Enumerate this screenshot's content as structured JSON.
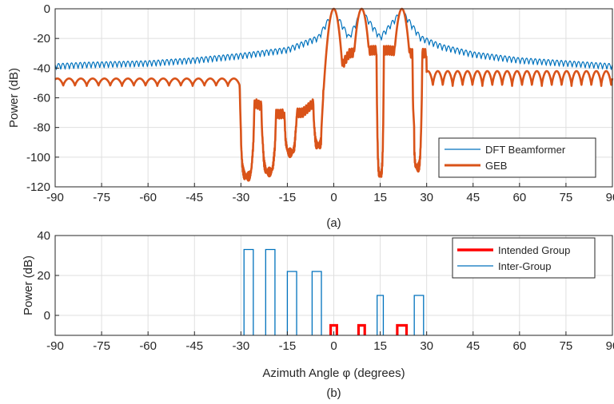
{
  "chart_data": [
    {
      "type": "line",
      "caption": "(a)",
      "xlabel": "",
      "ylabel": "Power (dB)",
      "xlim": [
        -90,
        90
      ],
      "ylim": [
        -120,
        0
      ],
      "xticks": [
        -90,
        -75,
        -60,
        -45,
        -30,
        -15,
        0,
        15,
        30,
        45,
        60,
        75,
        90
      ],
      "yticks": [
        0,
        -20,
        -40,
        -60,
        -80,
        -100,
        -120
      ],
      "grid": true,
      "legend_placement": "bottom-right",
      "series": [
        {
          "name": "DFT Beamformer",
          "color": "#0072BD",
          "envelope": [
            [
              -90,
              -37
            ],
            [
              -80,
              -36
            ],
            [
              -60,
              -35
            ],
            [
              -45,
              -33
            ],
            [
              -30,
              -30
            ],
            [
              -15,
              -26
            ],
            [
              -5,
              -18
            ],
            [
              0,
              0
            ],
            [
              5,
              -18
            ],
            [
              9,
              0
            ],
            [
              15,
              -18
            ],
            [
              22,
              0
            ],
            [
              28,
              -18
            ],
            [
              35,
              -24
            ],
            [
              45,
              -29
            ],
            [
              60,
              -33
            ],
            [
              75,
              -35
            ],
            [
              90,
              -37
            ]
          ],
          "ripple_floor_offset_db": -4,
          "ripple_period_deg": 1.4,
          "main_lobes": [
            {
              "center": 0,
              "peak": 0,
              "width": 1.6
            },
            {
              "center": 9,
              "peak": 0,
              "width": 1.6
            },
            {
              "center": 22,
              "peak": 0,
              "width": 1.6
            }
          ]
        },
        {
          "name": "GEB",
          "color": "#D95319",
          "regions": [
            {
              "x": [
                -90,
                -30
              ],
              "top": -47,
              "bottom": -52,
              "lobe_period_deg": 3.8
            },
            {
              "x": [
                30,
                90
              ],
              "top": -42,
              "bottom": -52,
              "lobe_period_deg": 3.2
            }
          ],
          "nulls": [
            {
              "center": -28,
              "depth": -113,
              "width": 2.4
            },
            {
              "center": -21,
              "depth": -110,
              "width": 2.4
            },
            {
              "center": -14,
              "depth": -97,
              "width": 2.0
            },
            {
              "center": -5,
              "depth": -92,
              "width": 1.6
            },
            {
              "center": 15,
              "depth": -112,
              "width": 1.2
            },
            {
              "center": 27,
              "depth": -107,
              "width": 1.6
            }
          ],
          "sidelobe_peaks": [
            [
              -25,
              -64
            ],
            [
              -18,
              -71
            ],
            [
              -10,
              -70
            ],
            [
              -2,
              -55
            ],
            [
              5,
              -30
            ],
            [
              12,
              -28
            ],
            [
              18,
              -28
            ],
            [
              25,
              -30
            ]
          ],
          "main_lobes": [
            {
              "center": 0,
              "peak": 0,
              "width": 1.6
            },
            {
              "center": 9,
              "peak": 0,
              "width": 1.6
            },
            {
              "center": 22,
              "peak": 0,
              "width": 1.6
            }
          ]
        }
      ]
    },
    {
      "type": "bar",
      "caption": "(b)",
      "xlabel": "Azimuth Angle φ (degrees)",
      "ylabel": "Power (dB)",
      "xlim": [
        -90,
        90
      ],
      "ylim": [
        -10,
        40
      ],
      "xticks": [
        -90,
        -75,
        -60,
        -45,
        -30,
        -15,
        0,
        15,
        30,
        45,
        60,
        75,
        90
      ],
      "yticks": [
        40,
        20,
        0
      ],
      "grid": true,
      "legend_placement": "top-right",
      "series": [
        {
          "name": "Intended Group",
          "color": "#FF0000",
          "bars": [
            {
              "x0": -1,
              "x1": 1,
              "value": -5
            },
            {
              "x0": 8,
              "x1": 10,
              "value": -5
            },
            {
              "x0": 20.5,
              "x1": 23.5,
              "value": -5
            }
          ]
        },
        {
          "name": "Inter-Group",
          "color": "#0072BD",
          "bars": [
            {
              "x0": -29,
              "x1": -26,
              "value": 33
            },
            {
              "x0": -22,
              "x1": -19,
              "value": 33
            },
            {
              "x0": -15,
              "x1": -12,
              "value": 22
            },
            {
              "x0": -7,
              "x1": -4,
              "value": 22
            },
            {
              "x0": 14,
              "x1": 16,
              "value": 10
            },
            {
              "x0": 26,
              "x1": 29,
              "value": 10
            }
          ]
        }
      ]
    }
  ]
}
